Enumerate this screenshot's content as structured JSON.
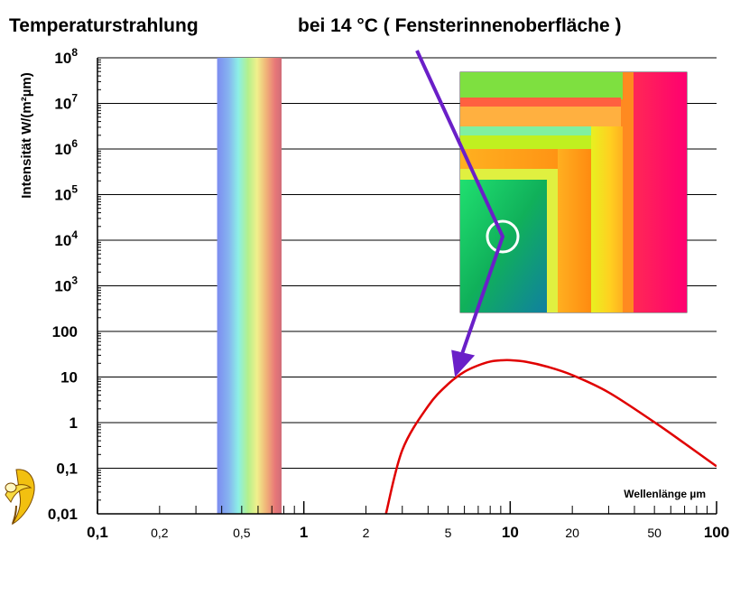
{
  "chart_data": {
    "type": "line",
    "title": "Temperaturstrahlung",
    "subtitle": "bei 14 °C ( Fensterinnenoberfläche )",
    "xlabel": "Wellenlänge µm",
    "ylabel": "Intensität W/(m²µm)",
    "x_scale": "log",
    "y_scale": "log",
    "xlim": [
      0.1,
      100
    ],
    "ylim": [
      0.01,
      100000000
    ],
    "grid": "horizontal",
    "legend": "none",
    "x_ticks": [
      {
        "value": 0.1,
        "label": "0,1",
        "major": true
      },
      {
        "value": 0.2,
        "label": "0,2",
        "major": false
      },
      {
        "value": 0.5,
        "label": "0,5",
        "major": false
      },
      {
        "value": 1,
        "label": "1",
        "major": true
      },
      {
        "value": 2,
        "label": "2",
        "major": false
      },
      {
        "value": 5,
        "label": "5",
        "major": false
      },
      {
        "value": 10,
        "label": "10",
        "major": true
      },
      {
        "value": 20,
        "label": "20",
        "major": false
      },
      {
        "value": 50,
        "label": "50",
        "major": false
      },
      {
        "value": 100,
        "label": "100",
        "major": true
      }
    ],
    "y_ticks": [
      {
        "value": 0.01,
        "base": "0,01",
        "exp": ""
      },
      {
        "value": 0.1,
        "base": "0,1",
        "exp": ""
      },
      {
        "value": 1,
        "base": "1",
        "exp": ""
      },
      {
        "value": 10,
        "base": "10",
        "exp": ""
      },
      {
        "value": 100,
        "base": "100",
        "exp": ""
      },
      {
        "value": 1000,
        "base": "10",
        "exp": "3"
      },
      {
        "value": 10000,
        "base": "10",
        "exp": "4"
      },
      {
        "value": 100000,
        "base": "10",
        "exp": "5"
      },
      {
        "value": 1000000,
        "base": "10",
        "exp": "6"
      },
      {
        "value": 10000000,
        "base": "10",
        "exp": "7"
      },
      {
        "value": 100000000,
        "base": "10",
        "exp": "8"
      }
    ],
    "visible_band": {
      "x_range": [
        0.38,
        0.78
      ]
    },
    "series": [
      {
        "color": "#e00000",
        "x": [
          2.5,
          3,
          4,
          5,
          6,
          7,
          8,
          9,
          10,
          12,
          15,
          20,
          30,
          50,
          70,
          100
        ],
        "y": [
          0.01,
          0.25,
          2.3,
          7,
          13,
          18,
          21.8,
          23.2,
          23.4,
          21.5,
          17,
          11,
          4.6,
          1.02,
          0.35,
          0.11
        ]
      }
    ],
    "annotation": {
      "x": 5.4,
      "y": 10,
      "description": "Thermografiebild einer Fensterecke mit markiertem Messpunkt"
    }
  },
  "colors": {
    "curve": "#e00000",
    "arrow": "#6a1fc8",
    "grid": "#000000",
    "thermal_green": "#10c060",
    "thermal_red": "#ff0060"
  },
  "icons": {
    "logo": "logo-icon"
  }
}
